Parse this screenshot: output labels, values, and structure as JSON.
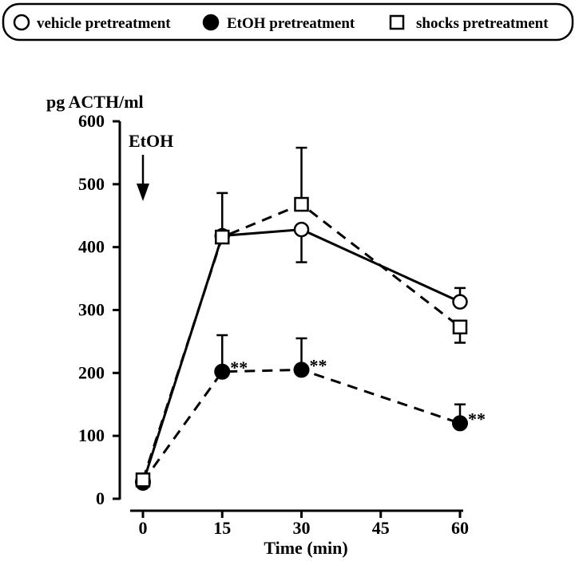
{
  "chart_data": {
    "type": "line",
    "title": "",
    "xlabel": "Time (min)",
    "ylabel": "pg ACTH/ml",
    "x_ticks": [
      0,
      15,
      30,
      45,
      60
    ],
    "y_ticks": [
      0,
      100,
      200,
      300,
      400,
      500,
      600
    ],
    "xlim": [
      0,
      60
    ],
    "ylim": [
      0,
      600
    ],
    "annotation": {
      "label": "EtOH",
      "at_x": 0
    },
    "significance_marker": "**",
    "legend": {
      "position": "top",
      "entries": [
        {
          "label": "vehicle pretreatment",
          "marker": "open-circle"
        },
        {
          "label": "EtOH pretreatment",
          "marker": "filled-circle"
        },
        {
          "label": "shocks pretreatment",
          "marker": "open-square"
        }
      ]
    },
    "series": [
      {
        "name": "vehicle pretreatment",
        "marker": "open-circle",
        "line": "solid",
        "x": [
          0,
          15,
          30,
          60
        ],
        "y": [
          25,
          418,
          428,
          313
        ],
        "err": [
          0,
          0,
          52,
          22
        ],
        "err_dir": [
          1,
          1,
          -1,
          1
        ],
        "sig": [
          false,
          false,
          false,
          false
        ]
      },
      {
        "name": "EtOH pretreatment",
        "marker": "filled-circle",
        "line": "dashed",
        "x": [
          0,
          15,
          30,
          60
        ],
        "y": [
          27,
          202,
          205,
          120
        ],
        "err": [
          0,
          58,
          50,
          30
        ],
        "err_dir": [
          1,
          1,
          1,
          1
        ],
        "sig": [
          false,
          true,
          true,
          true
        ]
      },
      {
        "name": "shocks pretreatment",
        "marker": "open-square",
        "line": "dashed",
        "x": [
          0,
          15,
          30,
          60
        ],
        "y": [
          30,
          416,
          468,
          273
        ],
        "err": [
          0,
          70,
          90,
          25
        ],
        "err_dir": [
          1,
          1,
          1,
          -1
        ],
        "sig": [
          false,
          false,
          false,
          false
        ]
      }
    ]
  }
}
